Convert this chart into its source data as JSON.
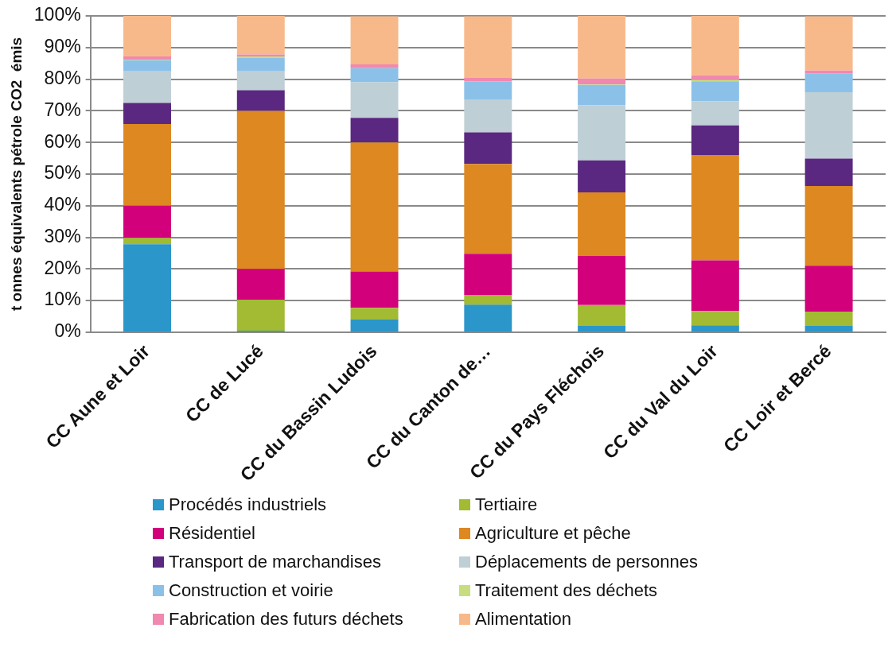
{
  "chart_data": {
    "type": "bar",
    "stacked": true,
    "ylabel": "t onnes équivalents pétrole CO2  émis",
    "categories": [
      "CC Aune et Loir",
      "CC de Lucé",
      "CC du Bassin Ludois",
      "CC du Canton de…",
      "CC du Pays Fléchois",
      "CC du Val du Loir",
      "CC Loir et Bercé"
    ],
    "ylim": [
      0,
      100
    ],
    "yticks": [
      {
        "value": 0,
        "label": "0%"
      },
      {
        "value": 10,
        "label": "10%"
      },
      {
        "value": 20,
        "label": "20%"
      },
      {
        "value": 30,
        "label": "30%"
      },
      {
        "value": 40,
        "label": "40%"
      },
      {
        "value": 50,
        "label": "50%"
      },
      {
        "value": 60,
        "label": "60%"
      },
      {
        "value": 70,
        "label": "70%"
      },
      {
        "value": 80,
        "label": "80%"
      },
      {
        "value": 90,
        "label": "90%"
      },
      {
        "value": 100,
        "label": "100%"
      }
    ],
    "grid": "y",
    "legend": "bottom",
    "series": [
      {
        "name": "Procédés industriels",
        "color": "#2a96c9",
        "values": [
          27.8,
          0.5,
          4,
          8.7,
          2,
          2.2,
          2
        ]
      },
      {
        "name": "Tertiaire",
        "color": "#a2bb33",
        "values": [
          2,
          9.8,
          3.7,
          3,
          6.6,
          4.5,
          4.5
        ]
      },
      {
        "name": "Résidentiel",
        "color": "#d2007b",
        "values": [
          10.2,
          9.7,
          11.5,
          13.1,
          15.6,
          16,
          14.5
        ]
      },
      {
        "name": "Agriculture et pêche",
        "color": "#dd8820",
        "values": [
          25.8,
          50,
          40.8,
          28.4,
          20,
          33.3,
          25.2
        ]
      },
      {
        "name": "Transport de marchandises",
        "color": "#5a2880",
        "values": [
          6.7,
          6.5,
          7.8,
          10,
          10.1,
          9.4,
          8.7
        ]
      },
      {
        "name": "Déplacements de personnes",
        "color": "#bfcfd6",
        "values": [
          10,
          6,
          11.2,
          10.2,
          17.4,
          7.6,
          21
        ]
      },
      {
        "name": "Construction et voirie",
        "color": "#8bc1e8",
        "values": [
          3.5,
          4.3,
          4.5,
          5.9,
          6.5,
          6.3,
          5.8
        ]
      },
      {
        "name": "Traitement des déchets",
        "color": "#c8dd80",
        "values": [
          0.2,
          0.4,
          null,
          null,
          0.2,
          0.5,
          null
        ]
      },
      {
        "name": "Fabrication des futurs déchets",
        "color": "#f088b0",
        "values": [
          1,
          0.6,
          1.2,
          1.2,
          1.8,
          1.4,
          1
        ]
      },
      {
        "name": "Alimentation",
        "color": "#f8b98a",
        "values": [
          12.8,
          12.2,
          15.2,
          19.4,
          19.8,
          18.8,
          17.2
        ]
      }
    ]
  }
}
